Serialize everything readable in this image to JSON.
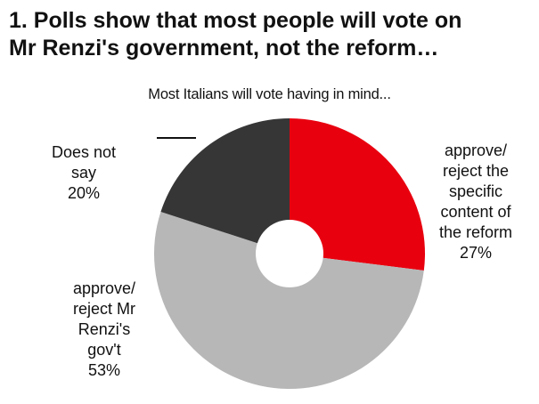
{
  "headline": {
    "line1": "1. Polls show that most people will vote on",
    "line2": "Mr Renzi's government, not the reform…"
  },
  "colors": {
    "red": "#e8000f",
    "grey": "#b7b7b7",
    "dark": "#363636"
  },
  "chart_data": {
    "type": "pie",
    "subtype": "donut",
    "title": "Most Italians will vote having in mind...",
    "slices": [
      {
        "label_lines": [
          "approve/",
          "reject the",
          "specific",
          "content of",
          "the reform"
        ],
        "value": 27,
        "value_label": "27%",
        "color": "#e8000f"
      },
      {
        "label_lines": [
          "approve/",
          "reject Mr",
          "Renzi's",
          "gov't"
        ],
        "value": 53,
        "value_label": "53%",
        "color": "#b7b7b7"
      },
      {
        "label_lines": [
          "Does not",
          "say"
        ],
        "value": 20,
        "value_label": "20%",
        "color": "#363636"
      }
    ],
    "start": "12 o'clock",
    "direction": "clockwise",
    "legend": "none (direct labels)"
  }
}
